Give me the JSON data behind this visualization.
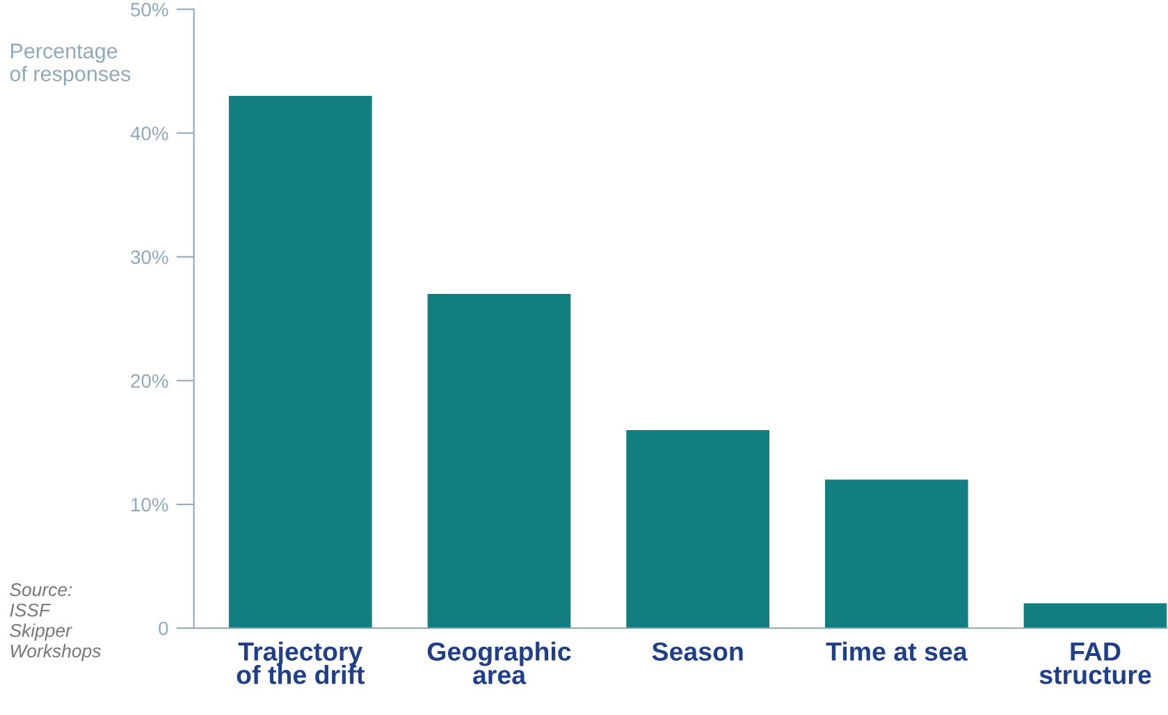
{
  "chart_data": {
    "type": "bar",
    "ylabel": "Percentage\nof responses",
    "categories": [
      "Trajectory\nof the drift",
      "Geographic\narea",
      "Season",
      "Time at sea",
      "FAD\nstructure"
    ],
    "values": [
      43,
      27,
      16,
      12,
      2
    ],
    "color": "#127e80",
    "ylim": [
      0,
      50
    ],
    "yticks": [
      {
        "value": 0,
        "label": "0"
      },
      {
        "value": 10,
        "label": "10%"
      },
      {
        "value": 20,
        "label": "20%"
      },
      {
        "value": 30,
        "label": "30%"
      },
      {
        "value": 40,
        "label": "40%"
      },
      {
        "value": 50,
        "label": "50%"
      }
    ],
    "grid": false,
    "legend": false,
    "annotations": [
      "Source:\nISSF\nSkipper\nWorkshops"
    ]
  }
}
